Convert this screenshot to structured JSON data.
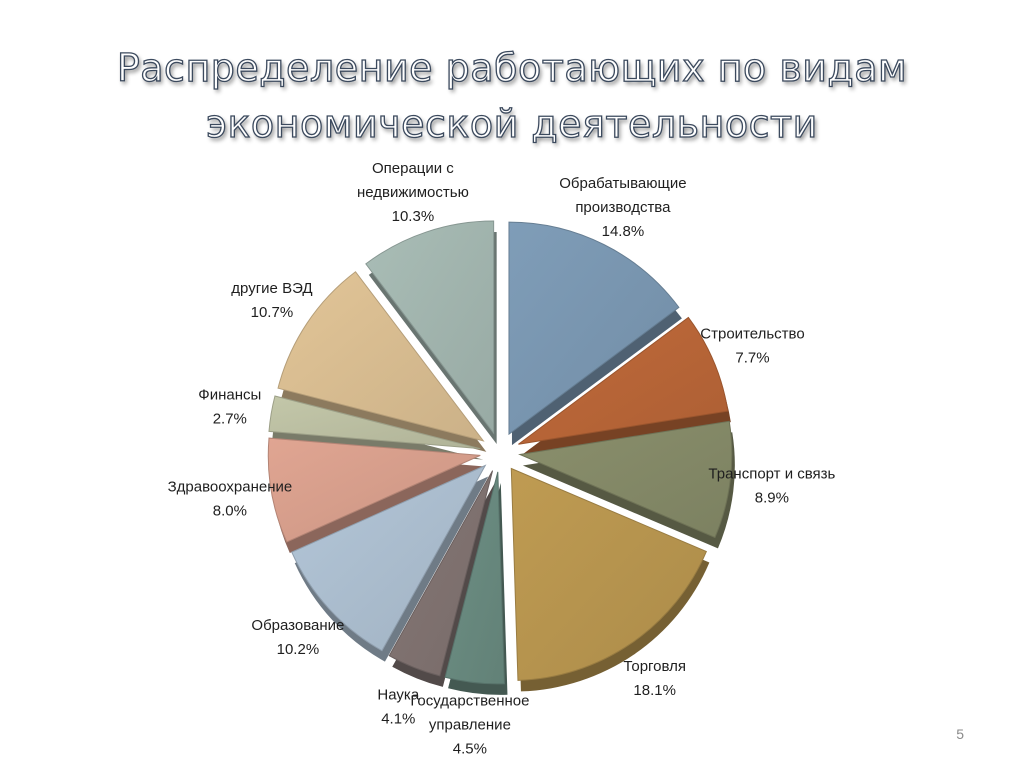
{
  "slide": {
    "title_line1": "Распределение работающих по видам",
    "title_line2": "экономической деятельности",
    "page_number": "5"
  },
  "chart_data": {
    "type": "pie",
    "title": "Распределение работающих по видам экономической деятельности",
    "exploded": true,
    "style": "3d",
    "slices": [
      {
        "label": [
          "Обрабатывающие",
          "производства"
        ],
        "value": 14.8,
        "value_text": "14.8%",
        "color": "#7f9db8"
      },
      {
        "label": [
          "Строительство"
        ],
        "value": 7.7,
        "value_text": "7.7%",
        "color": "#c06a3a"
      },
      {
        "label": [
          "Транспорт и связь"
        ],
        "value": 8.9,
        "value_text": "8.9%",
        "color": "#8a8f6c"
      },
      {
        "label": [
          "Торговля"
        ],
        "value": 18.1,
        "value_text": "18.1%",
        "color": "#bf9b52"
      },
      {
        "label": [
          "Государственное",
          "управление"
        ],
        "value": 4.5,
        "value_text": "4.5%",
        "color": "#6d8f84"
      },
      {
        "label": [
          "Наука"
        ],
        "value": 4.1,
        "value_text": "4.1%",
        "color": "#857775"
      },
      {
        "label": [
          "Образование"
        ],
        "value": 10.2,
        "value_text": "10.2%",
        "color": "#b3c6d8"
      },
      {
        "label": [
          "Здравоохранение"
        ],
        "value": 8.0,
        "value_text": "8.0%",
        "color": "#e0a592"
      },
      {
        "label": [
          "Финансы"
        ],
        "value": 2.7,
        "value_text": "2.7%",
        "color": "#c3c7a9"
      },
      {
        "label": [
          "другие ВЭД"
        ],
        "value": 10.7,
        "value_text": "10.7%",
        "color": "#e2c597"
      },
      {
        "label": [
          "Операции с",
          "недвижимостью"
        ],
        "value": 10.3,
        "value_text": "10.3%",
        "color": "#a9bdb6"
      }
    ]
  }
}
